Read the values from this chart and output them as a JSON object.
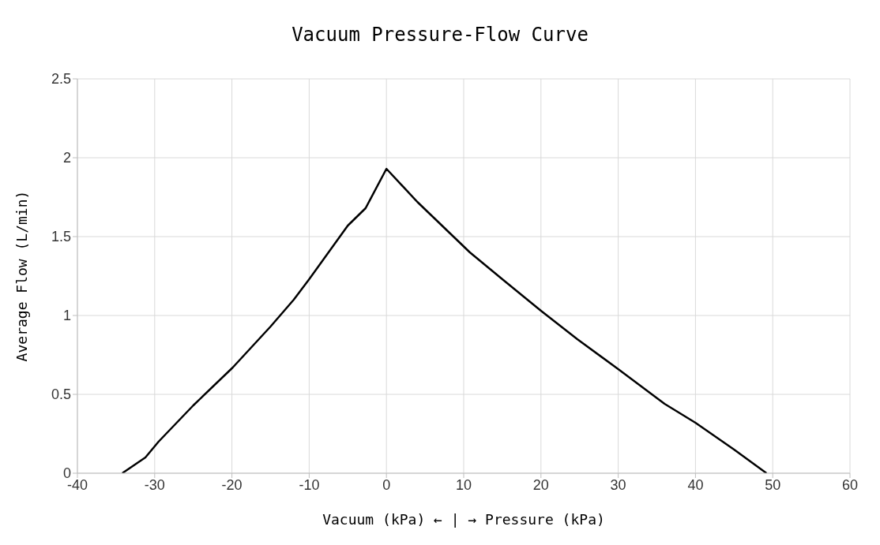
{
  "chart_data": {
    "type": "line",
    "title": "Vacuum Pressure-Flow Curve",
    "xlabel": "Vacuum (kPa)   ← | →   Pressure (kPa)",
    "ylabel": "Average Flow (L/min)",
    "series": [
      {
        "color": "#000000",
        "x": [
          -34.2,
          -31.2,
          -29.5,
          -25,
          -19.9,
          -15,
          -12,
          -10,
          -7.5,
          -5,
          -2.7,
          0,
          4,
          10.8,
          15,
          20,
          24.7,
          30,
          36,
          40,
          45,
          49.2
        ],
        "values": [
          0,
          0.1,
          0.2,
          0.43,
          0.67,
          0.93,
          1.1,
          1.23,
          1.4,
          1.57,
          1.68,
          1.93,
          1.72,
          1.4,
          1.23,
          1.03,
          0.85,
          0.66,
          0.44,
          0.32,
          0.15,
          0
        ]
      }
    ],
    "xlim": [
      -40,
      60
    ],
    "xticks": [
      -40,
      -30,
      -20,
      -10,
      0,
      10,
      20,
      30,
      40,
      50,
      60
    ],
    "ylim": [
      0,
      2.5
    ],
    "yticks": [
      0,
      0.5,
      1,
      1.5,
      2,
      2.5
    ],
    "grid": true,
    "marker": "none",
    "line_style": "solid",
    "legend": false
  }
}
